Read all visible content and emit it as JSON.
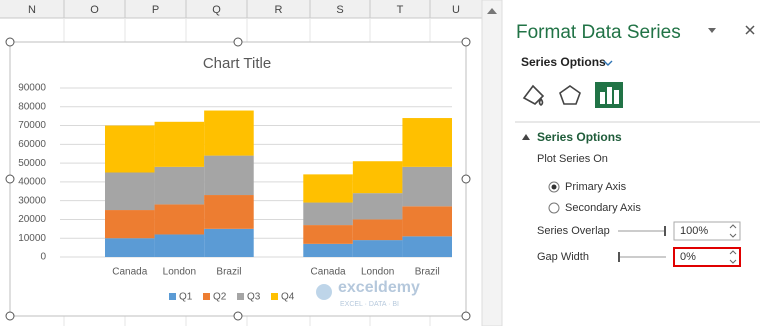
{
  "spreadsheet": {
    "columns": [
      "N",
      "O",
      "P",
      "Q",
      "R",
      "S",
      "T",
      "U"
    ]
  },
  "chart_data": {
    "type": "bar",
    "stacked": true,
    "title": "Chart Title",
    "categories": [
      "Canada",
      "London",
      "Brazil",
      null,
      "Canada",
      "London",
      "Brazil"
    ],
    "series": [
      {
        "name": "Q1",
        "color": "#5b9bd5",
        "values": [
          10000,
          12000,
          15000,
          null,
          7000,
          9000,
          11000
        ]
      },
      {
        "name": "Q2",
        "color": "#ed7d31",
        "values": [
          15000,
          16000,
          18000,
          null,
          10000,
          11000,
          16000
        ]
      },
      {
        "name": "Q3",
        "color": "#a5a5a5",
        "values": [
          20000,
          20000,
          21000,
          null,
          12000,
          14000,
          21000
        ]
      },
      {
        "name": "Q4",
        "color": "#ffc000",
        "values": [
          25000,
          24000,
          24000,
          null,
          15000,
          17000,
          26000
        ]
      }
    ],
    "ylim": [
      0,
      90000
    ],
    "yticks": [
      0,
      10000,
      20000,
      30000,
      40000,
      50000,
      60000,
      70000,
      80000,
      90000
    ],
    "grid": true,
    "legend": "bottom"
  },
  "watermark": {
    "name": "exceldemy",
    "tagline": "EXCEL · DATA · BI"
  },
  "pane": {
    "title": "Format Data Series",
    "tab": "Series Options",
    "section": "Series Options",
    "plot_series_on": "Plot Series On",
    "options": [
      "Primary Axis",
      "Secondary Axis"
    ],
    "selected": 0,
    "fields": [
      {
        "label": "Series Overlap",
        "value": "100%"
      },
      {
        "label": "Gap Width",
        "value": "0%"
      }
    ]
  }
}
